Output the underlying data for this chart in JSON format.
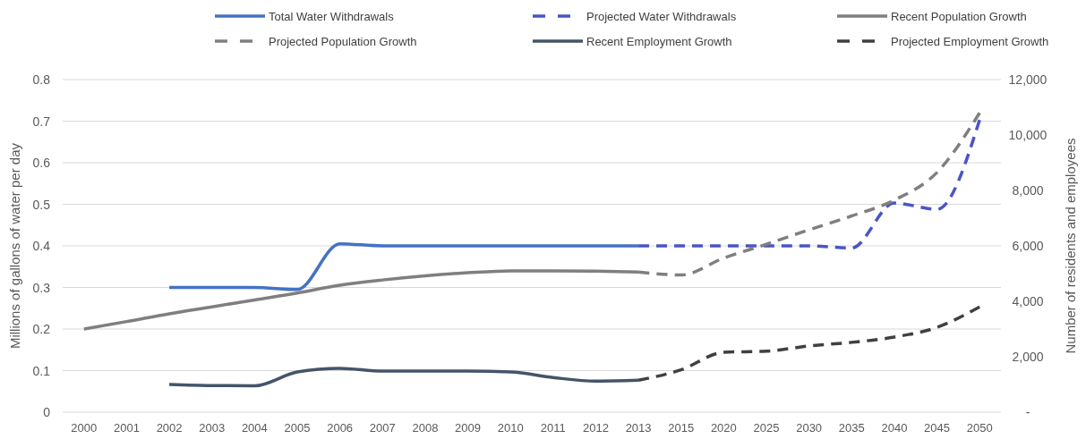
{
  "chart_data": {
    "type": "line",
    "ylabel": "Millions of gallons of water per day",
    "y2label": "Number of residents and employees",
    "categories": [
      "2000",
      "2001",
      "2002",
      "2003",
      "2004",
      "2005",
      "2006",
      "2007",
      "2008",
      "2009",
      "2010",
      "2011",
      "2012",
      "2013",
      "2015",
      "2020",
      "2025",
      "2030",
      "2035",
      "2040",
      "2045",
      "2050"
    ],
    "series": [
      {
        "name": "Total Water Withdrawals",
        "color": "#4472c4",
        "line_style": "solid",
        "values": [
          null,
          null,
          0.3,
          0.3,
          0.3,
          0.295,
          0.405,
          0.4,
          0.4,
          0.4,
          0.4,
          0.4,
          0.4,
          0.4,
          null,
          null,
          null,
          null,
          null,
          null,
          null,
          null
        ]
      },
      {
        "name": "Projected Water Withdrawals",
        "color": "#4a55c4",
        "line_style": "dashed",
        "values": [
          null,
          null,
          null,
          null,
          null,
          null,
          null,
          null,
          null,
          null,
          null,
          null,
          null,
          0.4,
          0.4,
          0.4,
          0.4,
          0.4,
          0.395,
          0.503,
          0.488,
          0.703
        ]
      },
      {
        "name": "Recent Population Growth",
        "color": "#7f7f7f",
        "line_style": "solid",
        "axis": "y2",
        "values": [
          3000,
          3270,
          3550,
          3800,
          4050,
          4300,
          4580,
          4770,
          4920,
          5030,
          5100,
          5100,
          5090,
          5060,
          null,
          null,
          null,
          null,
          null,
          null,
          null,
          null
        ]
      },
      {
        "name": "Projected Population Growth",
        "color": "#7f7f7f",
        "line_style": "dashed",
        "axis": "y2",
        "values": [
          null,
          null,
          null,
          null,
          null,
          null,
          null,
          null,
          null,
          null,
          null,
          null,
          null,
          5060,
          4950,
          5560,
          6060,
          6580,
          7080,
          7650,
          8650,
          10800
        ]
      },
      {
        "name": "Recent Employment Growth",
        "color": "#44546a",
        "line_style": "solid",
        "axis": "y2",
        "values": [
          null,
          null,
          1000,
          960,
          950,
          1450,
          1580,
          1480,
          1480,
          1480,
          1450,
          1250,
          1120,
          1150,
          null,
          null,
          null,
          null,
          null,
          null,
          null,
          null
        ]
      },
      {
        "name": "Projected Employment Growth",
        "color": "#404040",
        "line_style": "dashed",
        "axis": "y2",
        "values": [
          null,
          null,
          null,
          null,
          null,
          null,
          null,
          null,
          null,
          null,
          null,
          null,
          null,
          1150,
          1530,
          2160,
          2200,
          2390,
          2520,
          2710,
          3060,
          3800
        ]
      }
    ],
    "ylim": [
      0,
      0.8
    ],
    "yticks": [
      0,
      0.1,
      0.2,
      0.3,
      0.4,
      0.5,
      0.6,
      0.7,
      0.8
    ],
    "y2lim": [
      0,
      12000
    ],
    "y2ticks": [
      {
        "value": 0,
        "label": "-"
      },
      {
        "value": 2000,
        "label": "2,000"
      },
      {
        "value": 4000,
        "label": "4,000"
      },
      {
        "value": 6000,
        "label": "6,000"
      },
      {
        "value": 8000,
        "label": "8,000"
      },
      {
        "value": 10000,
        "label": "10,000"
      },
      {
        "value": 12000,
        "label": "12,000"
      }
    ],
    "grid": "y",
    "legend": "top",
    "marker": "none"
  }
}
